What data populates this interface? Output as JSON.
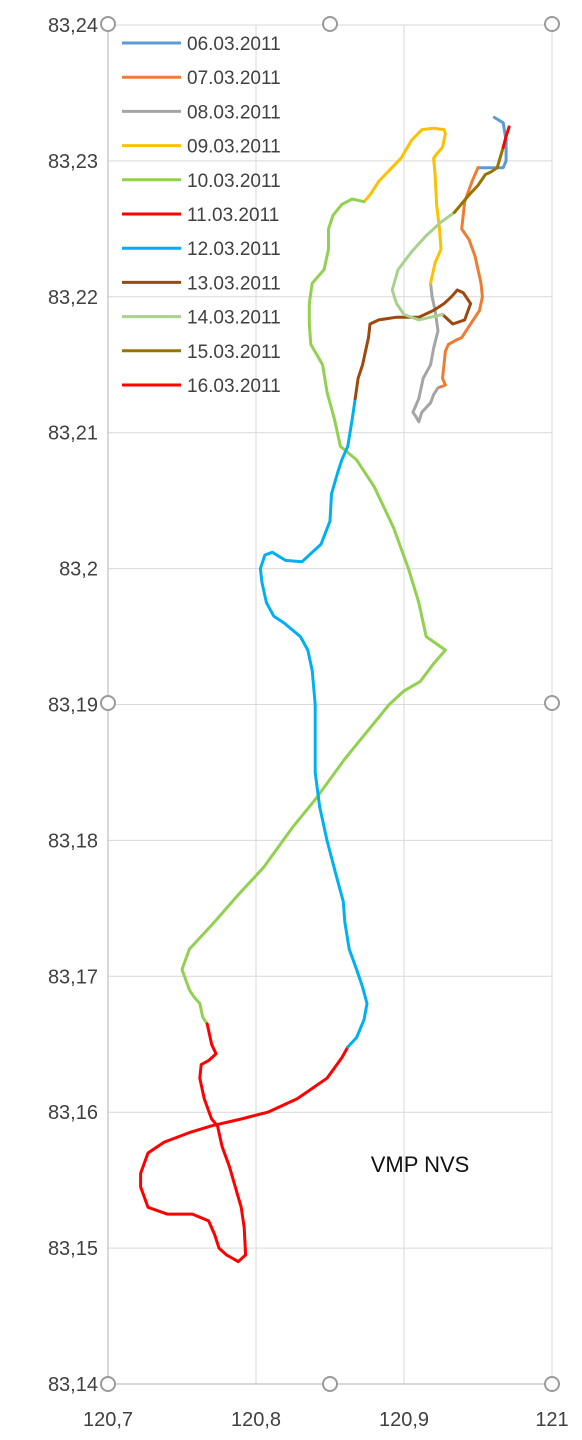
{
  "chart_data": {
    "type": "scatter",
    "xlim": [
      120.7,
      121.0
    ],
    "ylim": [
      83.14,
      83.24
    ],
    "x_ticks": [
      "120,7",
      "120,8",
      "120,9",
      "121"
    ],
    "y_ticks": [
      "83,24",
      "83,23",
      "83,22",
      "83,21",
      "83,2",
      "83,19",
      "83,18",
      "83,17",
      "83,16",
      "83,15",
      "83,14"
    ],
    "grid": true,
    "legend_position": "top-left",
    "annotation": "VMP NVS",
    "series": [
      {
        "name": "06.03.2011",
        "color": "#5B9BD5",
        "points": [
          [
            120.961,
            83.2332
          ],
          [
            120.967,
            83.2328
          ],
          [
            120.969,
            83.2315
          ],
          [
            120.969,
            83.23
          ],
          [
            120.967,
            83.2295
          ],
          [
            120.957,
            83.2295
          ],
          [
            120.95,
            83.2295
          ]
        ]
      },
      {
        "name": "07.03.2011",
        "color": "#ED7D31",
        "points": [
          [
            120.95,
            83.2295
          ],
          [
            120.946,
            83.2285
          ],
          [
            120.941,
            83.227
          ],
          [
            120.939,
            83.225
          ],
          [
            120.944,
            83.2242
          ],
          [
            120.948,
            83.223
          ],
          [
            120.952,
            83.221
          ],
          [
            120.953,
            83.22
          ],
          [
            120.951,
            83.219
          ],
          [
            120.945,
            83.218
          ],
          [
            120.939,
            83.217
          ],
          [
            120.935,
            83.2168
          ],
          [
            120.93,
            83.2165
          ],
          [
            120.928,
            83.216
          ],
          [
            120.927,
            83.215
          ],
          [
            120.926,
            83.214
          ],
          [
            120.928,
            83.2135
          ],
          [
            120.923,
            83.2133
          ]
        ]
      },
      {
        "name": "08.03.2011",
        "color": "#A5A5A5",
        "points": [
          [
            120.923,
            83.2133
          ],
          [
            120.92,
            83.2128
          ],
          [
            120.918,
            83.2122
          ],
          [
            120.912,
            83.2115
          ],
          [
            120.91,
            83.2108
          ],
          [
            120.908,
            83.2112
          ],
          [
            120.906,
            83.2115
          ],
          [
            120.91,
            83.2125
          ],
          [
            120.913,
            83.214
          ],
          [
            120.918,
            83.215
          ],
          [
            120.92,
            83.2162
          ],
          [
            120.923,
            83.2175
          ],
          [
            120.921,
            83.219
          ],
          [
            120.919,
            83.22
          ],
          [
            120.918,
            83.221
          ]
        ]
      },
      {
        "name": "09.03.2011",
        "color": "#FFC000",
        "points": [
          [
            120.918,
            83.221
          ],
          [
            120.921,
            83.2225
          ],
          [
            120.925,
            83.2235
          ],
          [
            120.924,
            83.225
          ],
          [
            120.922,
            83.2268
          ],
          [
            120.921,
            83.229
          ],
          [
            120.92,
            83.2302
          ],
          [
            120.922,
            83.2305
          ],
          [
            120.926,
            83.231
          ],
          [
            120.928,
            83.232
          ],
          [
            120.927,
            83.2323
          ],
          [
            120.92,
            83.2324
          ],
          [
            120.912,
            83.2323
          ],
          [
            120.905,
            83.2315
          ],
          [
            120.898,
            83.2302
          ],
          [
            120.89,
            83.2293
          ],
          [
            120.883,
            83.2285
          ],
          [
            120.877,
            83.2275
          ],
          [
            120.873,
            83.227
          ]
        ]
      },
      {
        "name": "10.03.2011",
        "color": "#92D050",
        "points": [
          [
            120.873,
            83.227
          ],
          [
            120.865,
            83.2272
          ],
          [
            120.858,
            83.2268
          ],
          [
            120.852,
            83.226
          ],
          [
            120.849,
            83.225
          ],
          [
            120.849,
            83.2235
          ],
          [
            120.846,
            83.222
          ],
          [
            120.838,
            83.221
          ],
          [
            120.836,
            83.2195
          ],
          [
            120.836,
            83.218
          ],
          [
            120.837,
            83.2165
          ],
          [
            120.845,
            83.215
          ],
          [
            120.848,
            83.213
          ],
          [
            120.853,
            83.211
          ],
          [
            120.857,
            83.209
          ],
          [
            120.868,
            83.208
          ],
          [
            120.88,
            83.206
          ],
          [
            120.893,
            83.203
          ],
          [
            120.903,
            83.2
          ],
          [
            120.91,
            83.1975
          ],
          [
            120.915,
            83.195
          ],
          [
            120.928,
            83.194
          ],
          [
            120.92,
            83.193
          ],
          [
            120.911,
            83.1917
          ],
          [
            120.9,
            83.191
          ],
          [
            120.89,
            83.19
          ],
          [
            120.875,
            83.188
          ],
          [
            120.86,
            83.186
          ],
          [
            120.84,
            83.183
          ],
          [
            120.825,
            83.181
          ],
          [
            120.805,
            83.178
          ],
          [
            120.788,
            83.176
          ],
          [
            120.772,
            83.174
          ],
          [
            120.755,
            83.172
          ],
          [
            120.75,
            83.1705
          ],
          [
            120.755,
            83.169
          ],
          [
            120.758,
            83.1685
          ],
          [
            120.762,
            83.168
          ],
          [
            120.764,
            83.167
          ],
          [
            120.767,
            83.1665
          ]
        ]
      },
      {
        "name": "11.03.2011",
        "color": "#FF0000",
        "points": [
          [
            120.767,
            83.1665
          ],
          [
            120.77,
            83.165
          ],
          [
            120.773,
            83.1643
          ],
          [
            120.768,
            83.1638
          ],
          [
            120.763,
            83.1635
          ],
          [
            120.762,
            83.1625
          ],
          [
            120.765,
            83.161
          ],
          [
            120.77,
            83.1595
          ],
          [
            120.774,
            83.159
          ],
          [
            120.777,
            83.1575
          ],
          [
            120.782,
            83.156
          ],
          [
            120.786,
            83.1545
          ],
          [
            120.79,
            83.153
          ],
          [
            120.792,
            83.1515
          ],
          [
            120.793,
            83.1495
          ],
          [
            120.788,
            83.149
          ],
          [
            120.785,
            83.1492
          ],
          [
            120.78,
            83.1495
          ],
          [
            120.775,
            83.15
          ],
          [
            120.772,
            83.151
          ],
          [
            120.768,
            83.152
          ],
          [
            120.757,
            83.1525
          ],
          [
            120.74,
            83.1525
          ],
          [
            120.727,
            83.153
          ],
          [
            120.722,
            83.1545
          ],
          [
            120.722,
            83.1555
          ],
          [
            120.727,
            83.157
          ],
          [
            120.738,
            83.1578
          ],
          [
            120.755,
            83.1585
          ],
          [
            120.77,
            83.159
          ],
          [
            120.79,
            83.1595
          ],
          [
            120.808,
            83.16
          ],
          [
            120.828,
            83.161
          ],
          [
            120.848,
            83.1625
          ],
          [
            120.858,
            83.164
          ],
          [
            120.862,
            83.1648
          ]
        ]
      },
      {
        "name": "12.03.2011",
        "color": "#00B0F0",
        "points": [
          [
            120.862,
            83.1648
          ],
          [
            120.868,
            83.1655
          ],
          [
            120.873,
            83.1668
          ],
          [
            120.875,
            83.168
          ],
          [
            120.872,
            83.1692
          ],
          [
            120.868,
            83.1705
          ],
          [
            120.863,
            83.172
          ],
          [
            120.86,
            83.174
          ],
          [
            120.859,
            83.1755
          ],
          [
            120.854,
            83.1775
          ],
          [
            120.848,
            83.18
          ],
          [
            120.843,
            83.1825
          ],
          [
            120.84,
            83.185
          ],
          [
            120.84,
            83.1875
          ],
          [
            120.84,
            83.19
          ],
          [
            120.838,
            83.1925
          ],
          [
            120.835,
            83.194
          ],
          [
            120.83,
            83.195
          ],
          [
            120.819,
            83.196
          ],
          [
            120.812,
            83.1965
          ],
          [
            120.807,
            83.1975
          ],
          [
            120.804,
            83.199
          ],
          [
            120.803,
            83.2
          ],
          [
            120.806,
            83.201
          ],
          [
            120.811,
            83.2012
          ],
          [
            120.82,
            83.2006
          ],
          [
            120.831,
            83.2005
          ],
          [
            120.844,
            83.2018
          ],
          [
            120.85,
            83.2035
          ],
          [
            120.851,
            83.2055
          ],
          [
            120.855,
            83.207
          ],
          [
            120.858,
            83.208
          ],
          [
            120.862,
            83.209
          ],
          [
            120.865,
            83.211
          ],
          [
            120.867,
            83.2125
          ]
        ]
      },
      {
        "name": "13.03.2011",
        "color": "#9E480E",
        "points": [
          [
            120.867,
            83.2125
          ],
          [
            120.869,
            83.214
          ],
          [
            120.872,
            83.215
          ],
          [
            120.874,
            83.216
          ],
          [
            120.876,
            83.217
          ],
          [
            120.877,
            83.218
          ],
          [
            120.883,
            83.2183
          ],
          [
            120.895,
            83.2185
          ],
          [
            120.91,
            83.2185
          ],
          [
            120.92,
            83.219
          ],
          [
            120.927,
            83.2195
          ],
          [
            120.932,
            83.22
          ],
          [
            120.936,
            83.2205
          ],
          [
            120.94,
            83.2203
          ],
          [
            120.945,
            83.2195
          ],
          [
            120.941,
            83.2183
          ],
          [
            120.933,
            83.218
          ],
          [
            120.926,
            83.2187
          ]
        ]
      },
      {
        "name": "14.03.2011",
        "color": "#A9D18E",
        "points": [
          [
            120.926,
            83.2187
          ],
          [
            120.918,
            83.2185
          ],
          [
            120.91,
            83.2183
          ],
          [
            120.9,
            83.2187
          ],
          [
            120.895,
            83.2195
          ],
          [
            120.892,
            83.2205
          ],
          [
            120.896,
            83.222
          ],
          [
            120.905,
            83.2233
          ],
          [
            120.915,
            83.2245
          ],
          [
            120.925,
            83.2255
          ],
          [
            120.934,
            83.2262
          ]
        ]
      },
      {
        "name": "15.03.2011",
        "color": "#997300",
        "points": [
          [
            120.934,
            83.2262
          ],
          [
            120.944,
            83.2275
          ],
          [
            120.95,
            83.2282
          ],
          [
            120.955,
            83.229
          ],
          [
            120.959,
            83.2292
          ],
          [
            120.963,
            83.2295
          ],
          [
            120.967,
            83.231
          ]
        ]
      },
      {
        "name": "16.03.2011",
        "color": "#FF0000",
        "points": [
          [
            120.967,
            83.231
          ],
          [
            120.969,
            83.2318
          ],
          [
            120.971,
            83.2325
          ]
        ]
      }
    ]
  }
}
